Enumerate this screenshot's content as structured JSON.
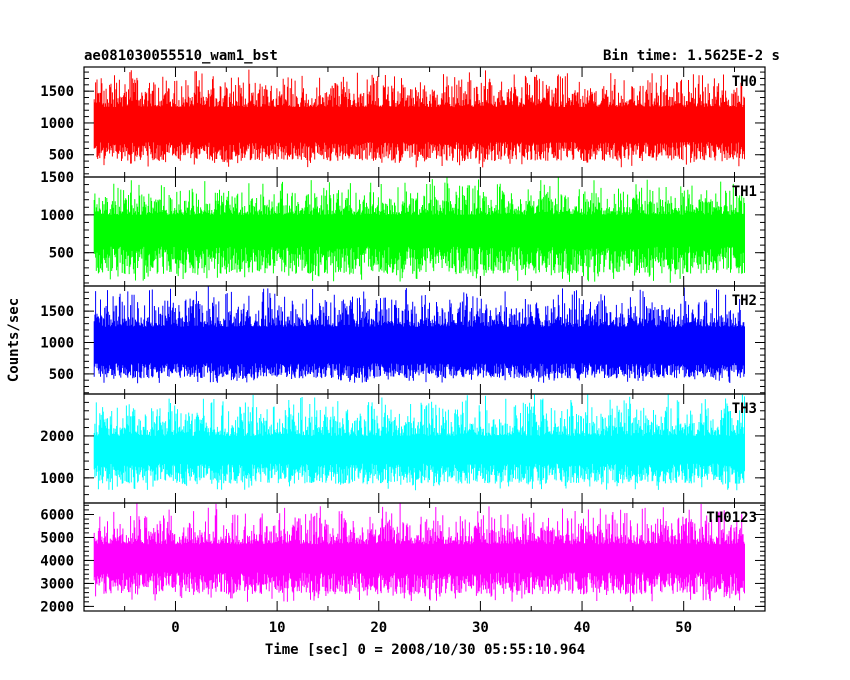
{
  "chart_data": {
    "type": "line",
    "title": "ae081030055510_wam1_bst",
    "subtitle": "Bin time: 1.5625E-2 s",
    "xlabel": "Time [sec] 0 = 2008/10/30 05:55:10.964",
    "ylabel": "Counts/sec",
    "xlim": [
      -9,
      58
    ],
    "x_ticks": [
      0,
      10,
      20,
      30,
      40,
      50
    ],
    "x_range_data": [
      -8,
      56
    ],
    "grid": false,
    "panels": [
      {
        "name": "TH0",
        "color": "#ff0000",
        "ylim": [
          150,
          1880
        ],
        "y_ticks": [
          500,
          1000,
          1500
        ],
        "envelope_low": 300,
        "typical_low": 550,
        "typical_high": 1250,
        "envelope_high": 1800
      },
      {
        "name": "TH1",
        "color": "#00ff00",
        "ylim": [
          60,
          1500
        ],
        "y_ticks": [
          500,
          1000,
          1500
        ],
        "envelope_low": 100,
        "typical_low": 400,
        "typical_high": 1000,
        "envelope_high": 1450
      },
      {
        "name": "TH2",
        "color": "#0000ff",
        "ylim": [
          180,
          1900
        ],
        "y_ticks": [
          500,
          1000,
          1500
        ],
        "envelope_low": 350,
        "typical_low": 550,
        "typical_high": 1250,
        "envelope_high": 1850
      },
      {
        "name": "TH3",
        "color": "#00ffff",
        "ylim": [
          400,
          3000
        ],
        "y_ticks": [
          1000,
          2000
        ],
        "envelope_low": 700,
        "typical_low": 1100,
        "typical_high": 2000,
        "envelope_high": 2950
      },
      {
        "name": "TH0123",
        "color": "#ff00ff",
        "ylim": [
          1800,
          6500
        ],
        "y_ticks": [
          2000,
          3000,
          4000,
          5000,
          6000
        ],
        "envelope_low": 2200,
        "typical_low": 3000,
        "typical_high": 4700,
        "envelope_high": 6300
      }
    ]
  }
}
